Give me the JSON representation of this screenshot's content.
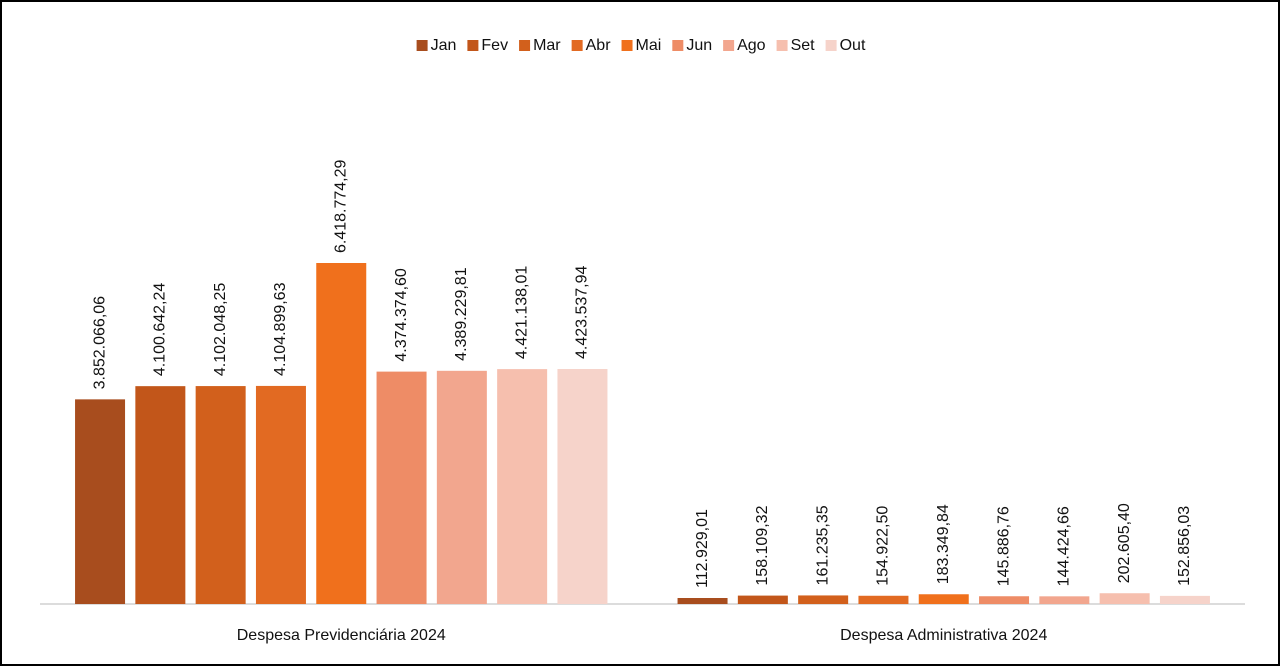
{
  "chart_data": {
    "type": "bar",
    "categories": [
      "Despesa Previdenciária 2024",
      "Despesa Administrativa 2024"
    ],
    "series": [
      {
        "name": "Jan",
        "color": "#a84d1e",
        "values": [
          3852066.06,
          112929.01
        ],
        "value_labels": [
          "3.852.066,06",
          "112.929,01"
        ]
      },
      {
        "name": "Fev",
        "color": "#c2561a",
        "values": [
          4100642.24,
          158109.32
        ],
        "value_labels": [
          "4.100.642,24",
          "158.109,32"
        ]
      },
      {
        "name": "Mar",
        "color": "#d2601c",
        "values": [
          4102048.25,
          161235.35
        ],
        "value_labels": [
          "4.102.048,25",
          "161.235,35"
        ]
      },
      {
        "name": "Abr",
        "color": "#e26a22",
        "values": [
          4104899.63,
          154922.5
        ],
        "value_labels": [
          "4.104.899,63",
          "154.922,50"
        ]
      },
      {
        "name": "Mai",
        "color": "#f0701c",
        "values": [
          6418774.29,
          183349.84
        ],
        "value_labels": [
          "6.418.774,29",
          "183.349,84"
        ]
      },
      {
        "name": "Jun",
        "color": "#ee8c66",
        "values": [
          4374374.6,
          145886.76
        ],
        "value_labels": [
          "4.374.374,60",
          "145.886,76"
        ]
      },
      {
        "name": "Ago",
        "color": "#f2a68e",
        "values": [
          4389229.81,
          144424.66
        ],
        "value_labels": [
          "4.389.229,81",
          "144.424,66"
        ]
      },
      {
        "name": "Set",
        "color": "#f6bfae",
        "values": [
          4421138.01,
          202605.4
        ],
        "value_labels": [
          "4.421.138,01",
          "202.605,40"
        ]
      },
      {
        "name": "Out",
        "color": "#f6d3ca",
        "values": [
          4423537.94,
          152856.03
        ],
        "value_labels": [
          "4.423.537,94",
          "152.856,03"
        ]
      }
    ],
    "legend": "top"
  }
}
